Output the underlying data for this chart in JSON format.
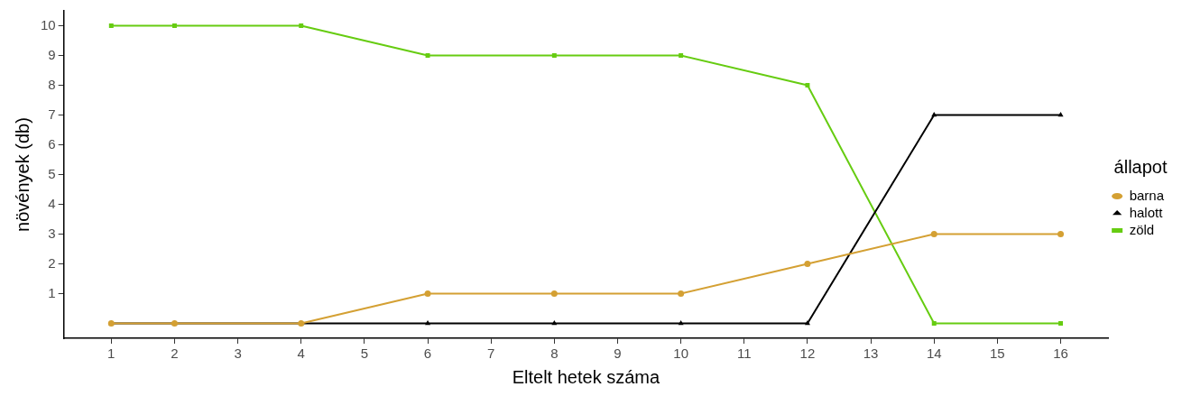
{
  "chart_data": {
    "type": "line",
    "xlabel": "Eltelt hetek száma",
    "ylabel": "növények (db)",
    "legend_title": "állapot",
    "legend": "right",
    "grid": false,
    "x": [
      1,
      2,
      4,
      6,
      8,
      10,
      12,
      14,
      16
    ],
    "xlim": [
      0.25,
      16.75
    ],
    "xticks": [
      1,
      2,
      3,
      4,
      5,
      6,
      7,
      8,
      9,
      10,
      11,
      12,
      13,
      14,
      15,
      16
    ],
    "ylim": [
      -0.5,
      10.5
    ],
    "yticks": [
      1,
      2,
      3,
      4,
      5,
      6,
      7,
      8,
      9,
      10
    ],
    "line_style": "solid",
    "series": [
      {
        "name": "barna",
        "color": "#d4a033",
        "marker": "circle",
        "values": [
          0,
          0,
          0,
          1,
          1,
          1,
          2,
          3,
          3
        ]
      },
      {
        "name": "halott",
        "color": "#000000",
        "marker": "triangle",
        "values": [
          0,
          0,
          0,
          0,
          0,
          0,
          0,
          7,
          7
        ]
      },
      {
        "name": "zöld",
        "color": "#66cc11",
        "marker": "square",
        "values": [
          10,
          10,
          10,
          9,
          9,
          9,
          8,
          0,
          0
        ]
      }
    ]
  }
}
